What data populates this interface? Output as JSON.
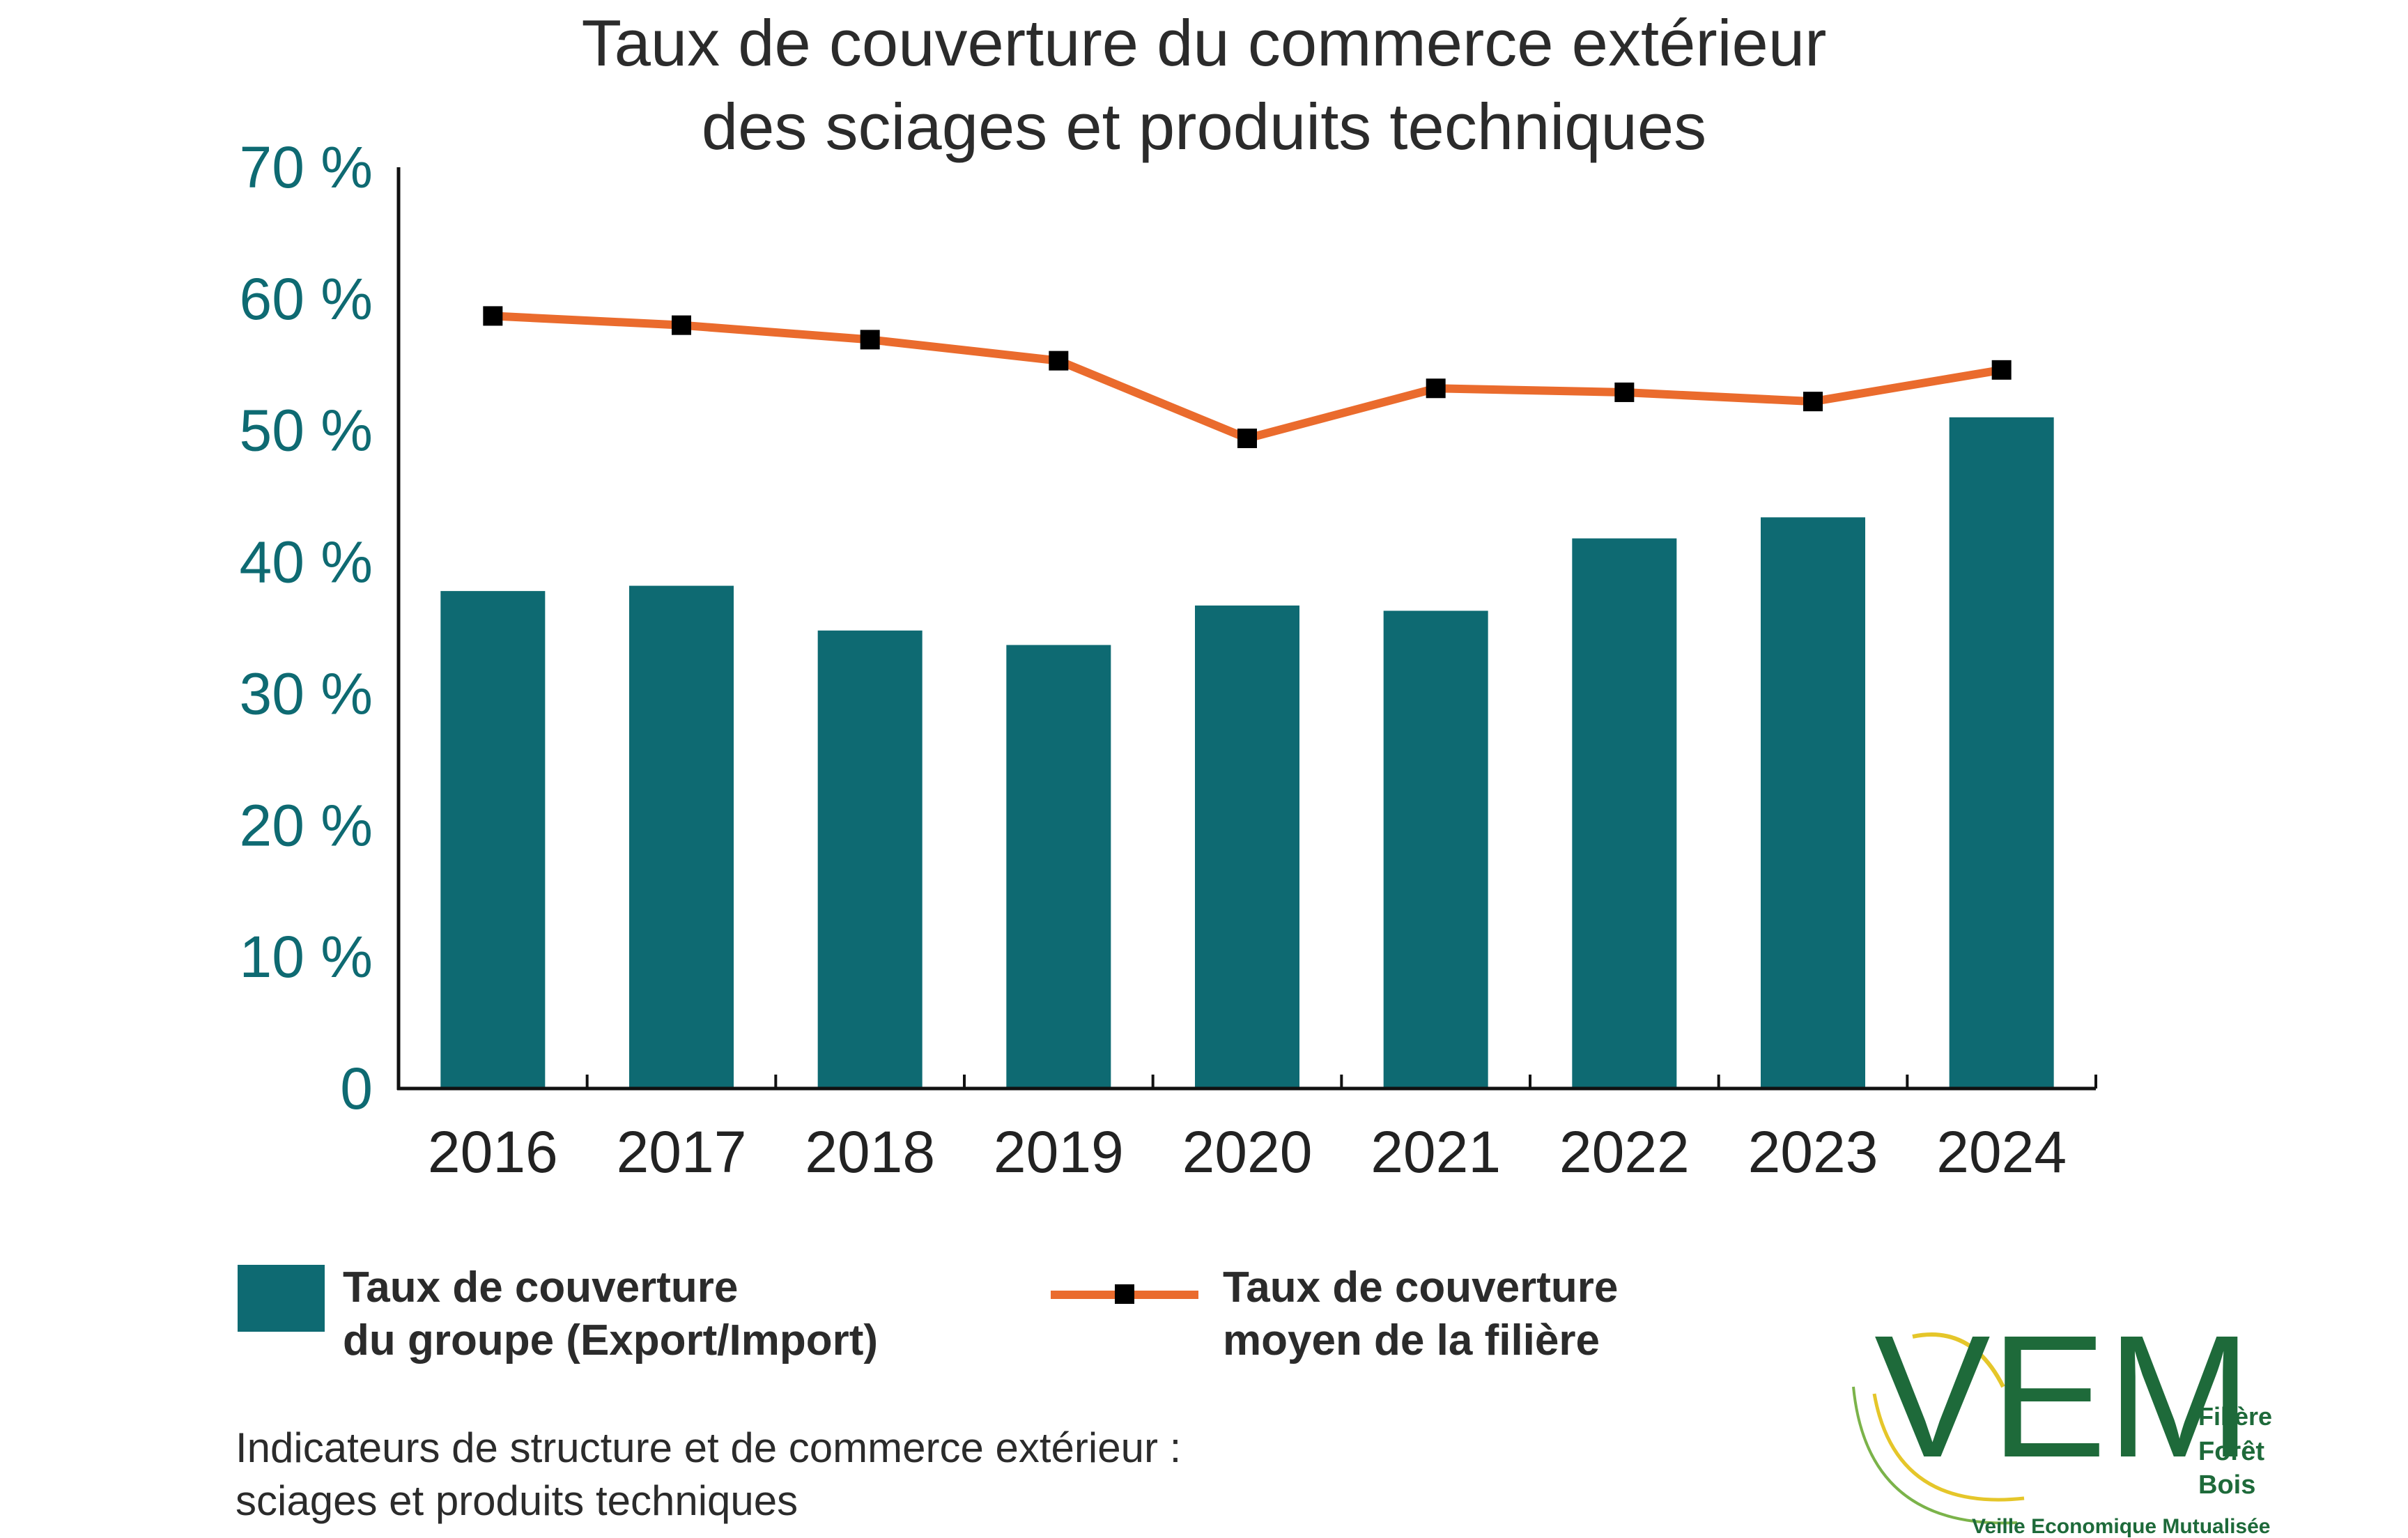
{
  "chart_data": {
    "type": "bar",
    "title_lines": [
      "Taux de couverture du commerce extérieur",
      "des sciages et produits techniques"
    ],
    "categories": [
      "2016",
      "2017",
      "2018",
      "2019",
      "2020",
      "2021",
      "2022",
      "2023",
      "2024"
    ],
    "series": [
      {
        "name": "Taux de couverture du groupe (Export/Import)",
        "kind": "bar",
        "color": "#0e6a72",
        "values": [
          37.8,
          38.2,
          34.8,
          33.7,
          36.7,
          36.3,
          41.8,
          43.4,
          51.0
        ]
      },
      {
        "name": "Taux de couverture moyen de la filière",
        "kind": "line",
        "color": "#ea6b2d",
        "marker_color": "#000000",
        "values": [
          58.7,
          58.0,
          56.9,
          55.3,
          49.4,
          53.2,
          52.9,
          52.2,
          54.6
        ]
      }
    ],
    "ylim": [
      0,
      70
    ],
    "yticks": [
      0,
      10,
      20,
      30,
      40,
      50,
      60,
      70
    ],
    "ytick_labels": [
      "0",
      "10 %",
      "20 %",
      "30 %",
      "40 %",
      "50 %",
      "60 %",
      "70 %"
    ],
    "grid": false,
    "legend_position": "bottom"
  },
  "legend": {
    "bar_line1": "Taux de couverture",
    "bar_line2": "du groupe (Export/Import)",
    "line_line1": "Taux de couverture",
    "line_line2": "moyen de la filière"
  },
  "note": {
    "line1": "Indicateurs de structure et de commerce extérieur :",
    "line2": "sciages et produits techniques"
  },
  "logo": {
    "letters": "VEM",
    "side_line1": "Filière",
    "side_line2": "Forêt",
    "side_line3": "Bois",
    "tagline": "Veille Economique Mutualisée",
    "green": "#1e6a3a",
    "yellow": "#e5c62a"
  }
}
